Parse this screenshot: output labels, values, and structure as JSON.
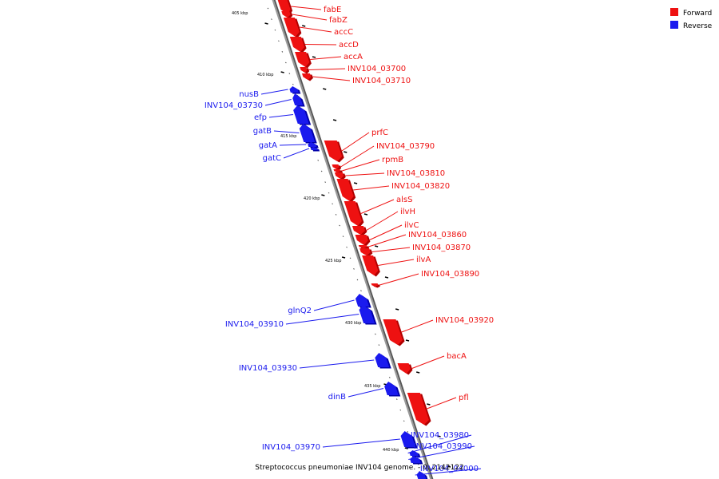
{
  "colors": {
    "forward": "#ee1111",
    "forward_shade": "#b00000",
    "reverse": "#1a1aee",
    "reverse_shade": "#0000a8",
    "axis": "#999999",
    "axis_shade": "#555555",
    "tick": "#000000"
  },
  "legend": [
    {
      "label": "Forward",
      "strand": "forward"
    },
    {
      "label": "Reverse",
      "strand": "reverse"
    }
  ],
  "caption": "Streptococcus pneumoniae INV104 genome. - 0..2142122",
  "kbp_labels": [
    "405 kbp",
    "410 kbp",
    "415 kbp",
    "420 kbp",
    "425 kbp",
    "430 kbp",
    "435 kbp",
    "440 kbp"
  ],
  "genes": [
    {
      "name": "fabE",
      "strand": "forward"
    },
    {
      "name": "fabZ",
      "strand": "forward"
    },
    {
      "name": "accC",
      "strand": "forward"
    },
    {
      "name": "accD",
      "strand": "forward"
    },
    {
      "name": "accA",
      "strand": "forward"
    },
    {
      "name": "INV104_03700",
      "strand": "forward"
    },
    {
      "name": "INV104_03710",
      "strand": "forward"
    },
    {
      "name": "nusB",
      "strand": "reverse"
    },
    {
      "name": "INV104_03730",
      "strand": "reverse"
    },
    {
      "name": "efp",
      "strand": "reverse"
    },
    {
      "name": "gatB",
      "strand": "reverse"
    },
    {
      "name": "gatA",
      "strand": "reverse"
    },
    {
      "name": "gatC",
      "strand": "reverse"
    },
    {
      "name": "prfC",
      "strand": "forward"
    },
    {
      "name": "INV104_03790",
      "strand": "forward"
    },
    {
      "name": "rpmB",
      "strand": "forward"
    },
    {
      "name": "INV104_03810",
      "strand": "forward"
    },
    {
      "name": "INV104_03820",
      "strand": "forward"
    },
    {
      "name": "alsS",
      "strand": "forward"
    },
    {
      "name": "ilvH",
      "strand": "forward"
    },
    {
      "name": "ilvC",
      "strand": "forward"
    },
    {
      "name": "INV104_03860",
      "strand": "forward"
    },
    {
      "name": "INV104_03870",
      "strand": "forward"
    },
    {
      "name": "ilvA",
      "strand": "forward"
    },
    {
      "name": "INV104_03890",
      "strand": "forward"
    },
    {
      "name": "glnQ2",
      "strand": "reverse"
    },
    {
      "name": "INV104_03910",
      "strand": "reverse"
    },
    {
      "name": "INV104_03920",
      "strand": "forward"
    },
    {
      "name": "INV104_03930",
      "strand": "reverse"
    },
    {
      "name": "bacA",
      "strand": "forward"
    },
    {
      "name": "dinB",
      "strand": "reverse"
    },
    {
      "name": "pfl",
      "strand": "forward"
    },
    {
      "name": "INV104_03970",
      "strand": "reverse"
    },
    {
      "name": "INV104_03980",
      "strand": "reverse"
    },
    {
      "name": "INV104_03990",
      "strand": "reverse"
    },
    {
      "name": "INV104_04000",
      "strand": "reverse"
    }
  ]
}
